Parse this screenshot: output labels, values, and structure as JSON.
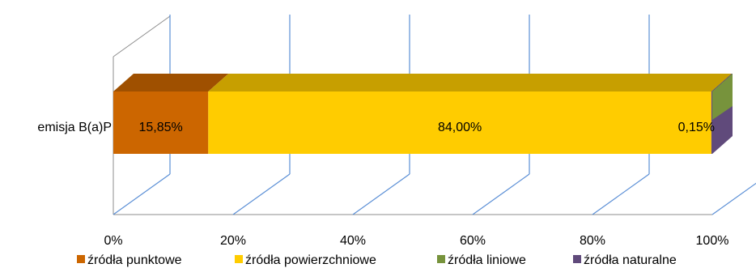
{
  "chart_data": {
    "type": "bar",
    "orientation": "horizontal",
    "stacked": "100%",
    "three_d": true,
    "categories": [
      "emisja B(a)P"
    ],
    "series": [
      {
        "name": "źródła punktowe",
        "values": [
          15.85
        ],
        "label": "15,85%",
        "color": "#CC6600"
      },
      {
        "name": "źródła powierzchniowe",
        "values": [
          84.0
        ],
        "label": "84,00%",
        "color": "#FFCC00"
      },
      {
        "name": "źródła liniowe",
        "values": [
          0.0
        ],
        "label": "",
        "color": "#77933C"
      },
      {
        "name": "źródła naturalne",
        "values": [
          0.15
        ],
        "label": "0,15%",
        "color": "#604A7B"
      }
    ],
    "x_ticks": [
      "0%",
      "20%",
      "40%",
      "60%",
      "80%",
      "100%"
    ],
    "xlim": [
      0,
      100
    ],
    "grid": true,
    "legend_position": "bottom",
    "title": "",
    "xlabel": "",
    "ylabel": ""
  }
}
